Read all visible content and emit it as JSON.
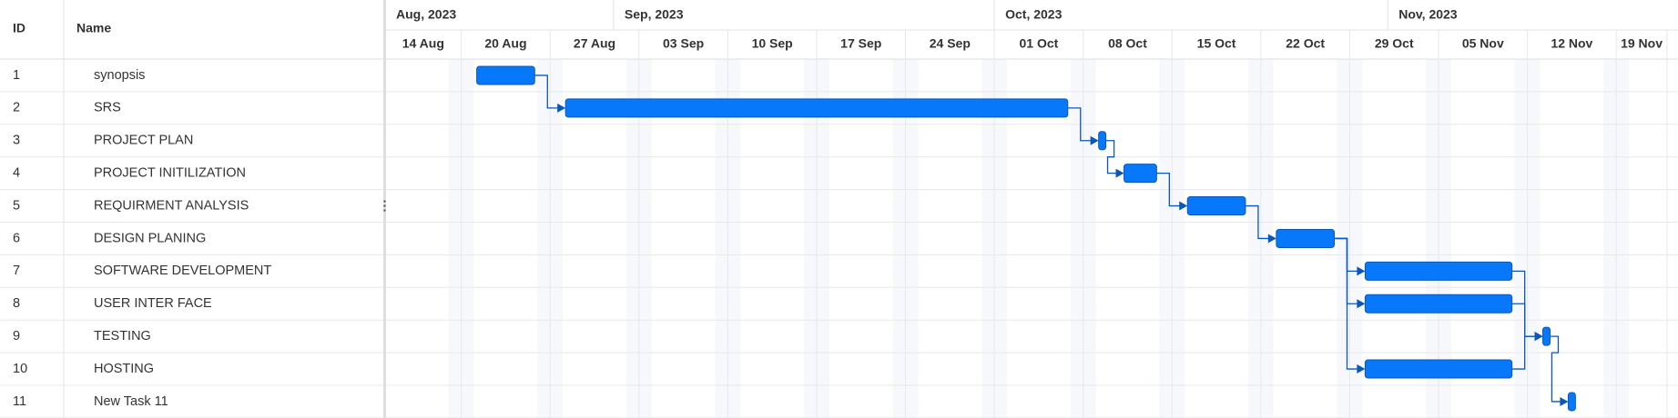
{
  "grid": {
    "columns": [
      "ID",
      "Name"
    ]
  },
  "timeline": {
    "view_start": "2023-08-14",
    "view_end": "2023-11-23",
    "months": [
      {
        "label": "Aug, 2023",
        "start": "2023-08-01"
      },
      {
        "label": "Sep, 2023",
        "start": "2023-09-01"
      },
      {
        "label": "Oct, 2023",
        "start": "2023-10-01"
      },
      {
        "label": "Nov, 2023",
        "start": "2023-11-01"
      }
    ],
    "weeks": [
      {
        "label": "14 Aug",
        "start": "2023-08-13"
      },
      {
        "label": "20 Aug",
        "start": "2023-08-20"
      },
      {
        "label": "27 Aug",
        "start": "2023-08-27"
      },
      {
        "label": "03 Sep",
        "start": "2023-09-03"
      },
      {
        "label": "10 Sep",
        "start": "2023-09-10"
      },
      {
        "label": "17 Sep",
        "start": "2023-09-17"
      },
      {
        "label": "24 Sep",
        "start": "2023-09-24"
      },
      {
        "label": "01 Oct",
        "start": "2023-10-01"
      },
      {
        "label": "08 Oct",
        "start": "2023-10-08"
      },
      {
        "label": "15 Oct",
        "start": "2023-10-15"
      },
      {
        "label": "22 Oct",
        "start": "2023-10-22"
      },
      {
        "label": "29 Oct",
        "start": "2023-10-29"
      },
      {
        "label": "05 Nov",
        "start": "2023-11-05"
      },
      {
        "label": "12 Nov",
        "start": "2023-11-12"
      },
      {
        "label": "19 Nov",
        "start": "2023-11-19"
      }
    ]
  },
  "tasks": [
    {
      "id": 1,
      "name": "synopsis",
      "start": "2023-08-21",
      "end": "2023-08-25",
      "depends_on": []
    },
    {
      "id": 2,
      "name": "SRS",
      "start": "2023-08-28",
      "end": "2023-10-06",
      "depends_on": [
        1
      ]
    },
    {
      "id": 3,
      "name": "PROJECT PLAN",
      "start": "2023-10-09",
      "end": "2023-10-09",
      "depends_on": [
        2
      ]
    },
    {
      "id": 4,
      "name": "PROJECT INITILIZATION",
      "start": "2023-10-11",
      "end": "2023-10-13",
      "depends_on": [
        3
      ]
    },
    {
      "id": 5,
      "name": "REQUIRMENT ANALYSIS",
      "start": "2023-10-16",
      "end": "2023-10-20",
      "depends_on": [
        4
      ]
    },
    {
      "id": 6,
      "name": "DESIGN PLANING",
      "start": "2023-10-23",
      "end": "2023-10-27",
      "depends_on": [
        5
      ]
    },
    {
      "id": 7,
      "name": "SOFTWARE DEVELOPMENT",
      "start": "2023-10-30",
      "end": "2023-11-10",
      "depends_on": [
        6
      ]
    },
    {
      "id": 8,
      "name": "USER INTER FACE",
      "start": "2023-10-30",
      "end": "2023-11-10",
      "depends_on": [
        6
      ]
    },
    {
      "id": 9,
      "name": "TESTING",
      "start": "2023-11-13",
      "end": "2023-11-13",
      "depends_on": [
        7,
        8,
        10
      ]
    },
    {
      "id": 10,
      "name": "HOSTING",
      "start": "2023-10-30",
      "end": "2023-11-10",
      "depends_on": [
        6
      ]
    },
    {
      "id": 11,
      "name": "New Task 11",
      "start": "2023-11-15",
      "end": "2023-11-15",
      "depends_on": [
        9
      ]
    }
  ]
}
